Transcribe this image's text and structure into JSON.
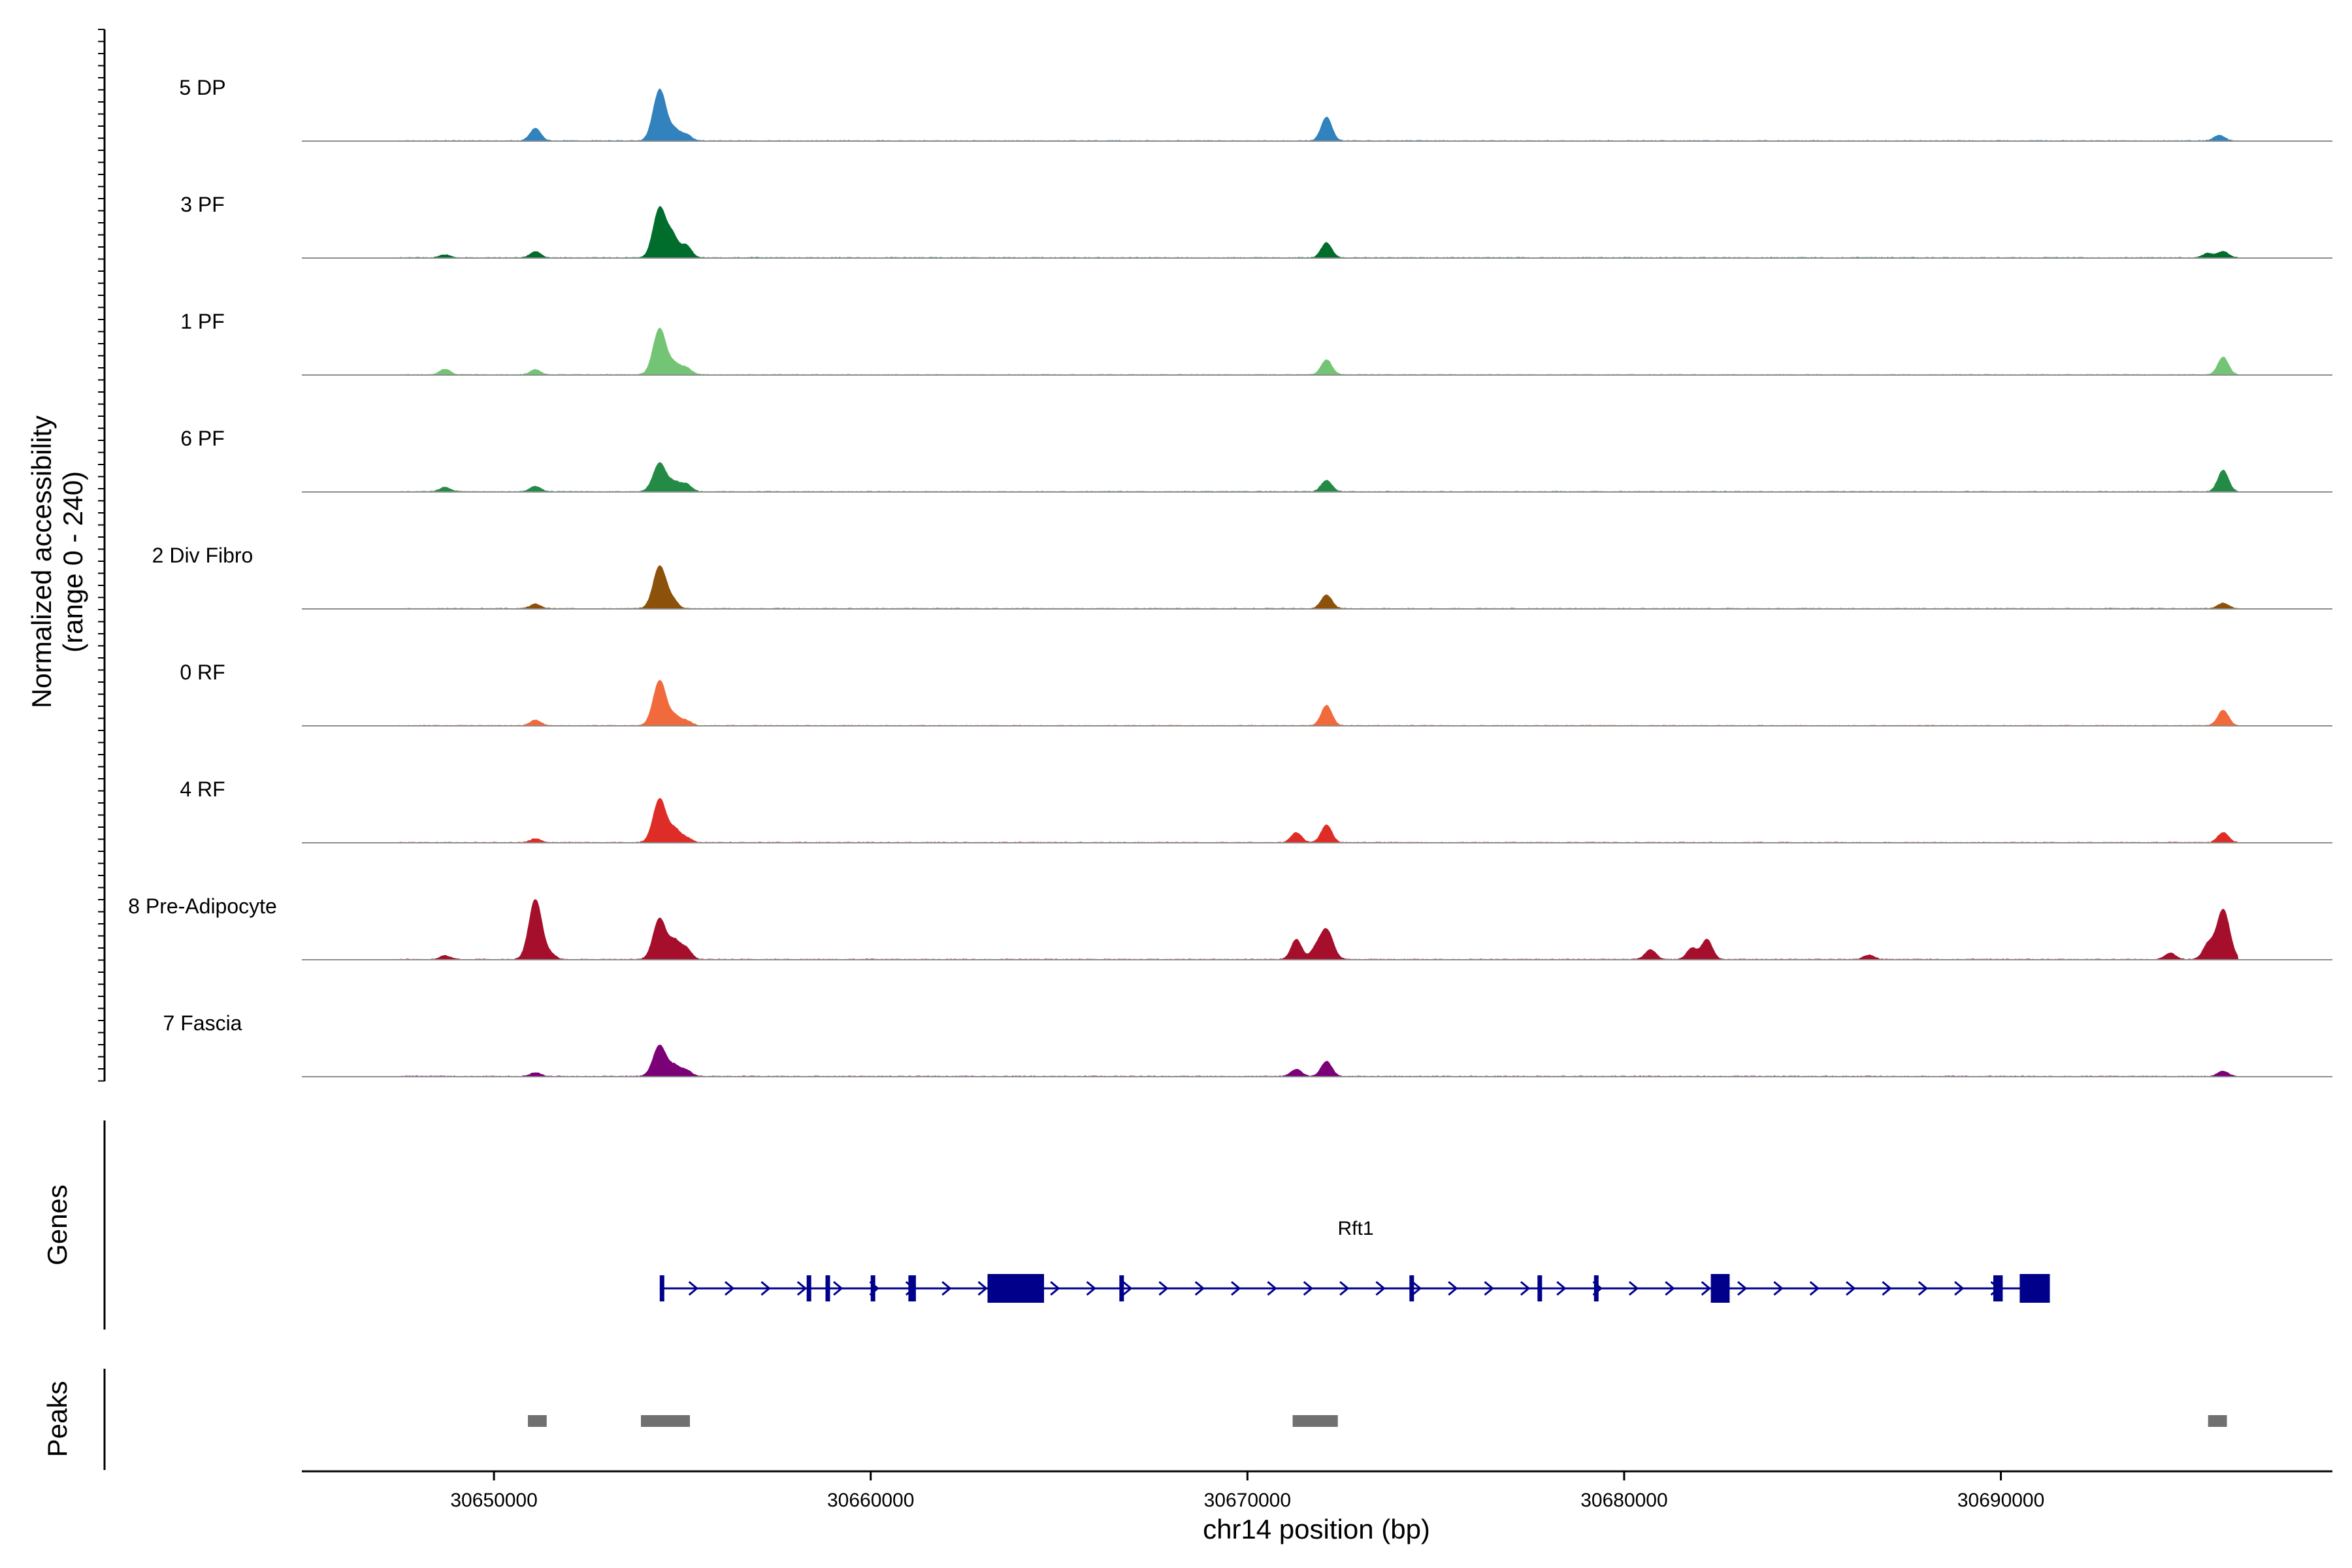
{
  "chart_data": {
    "type": "area",
    "title": "",
    "ylabel_line1": "Normalized accessibility",
    "ylabel_line2": "(range 0 - 240)",
    "xlabel": "chr14 position (bp)",
    "xlim": [
      30644900,
      30698800
    ],
    "ylim": [
      0,
      240
    ],
    "x_ticks": [
      30650000,
      30660000,
      30670000,
      30680000,
      30690000
    ],
    "x_tick_labels": [
      "30650000",
      "30660000",
      "30670000",
      "30680000",
      "30690000"
    ],
    "genes_label": "Genes",
    "peaks_label": "Peaks",
    "tracks": [
      {
        "name": "5 DP",
        "color": "#3182bd",
        "peaks": [
          [
            30651100,
            50
          ],
          [
            30654400,
            205
          ],
          [
            30654800,
            40
          ],
          [
            30655100,
            25
          ],
          [
            30672100,
            95
          ],
          [
            30695800,
            22
          ]
        ]
      },
      {
        "name": "3 PF",
        "color": "#006d2c",
        "peaks": [
          [
            30648700,
            12
          ],
          [
            30651100,
            25
          ],
          [
            30654400,
            200
          ],
          [
            30654750,
            80
          ],
          [
            30655100,
            50
          ],
          [
            30672100,
            60
          ],
          [
            30695500,
            18
          ],
          [
            30695900,
            25
          ]
        ]
      },
      {
        "name": "1 PF",
        "color": "#74c476",
        "peaks": [
          [
            30648700,
            22
          ],
          [
            30651100,
            20
          ],
          [
            30654400,
            185
          ],
          [
            30654800,
            40
          ],
          [
            30655100,
            28
          ],
          [
            30672100,
            60
          ],
          [
            30695900,
            70
          ]
        ]
      },
      {
        "name": "6 PF",
        "color": "#238b45",
        "peaks": [
          [
            30648700,
            18
          ],
          [
            30651100,
            22
          ],
          [
            30654400,
            115
          ],
          [
            30654800,
            35
          ],
          [
            30655100,
            30
          ],
          [
            30672100,
            45
          ],
          [
            30695900,
            85
          ]
        ]
      },
      {
        "name": "2 Div Fibro",
        "color": "#8c510a",
        "peaks": [
          [
            30651100,
            18
          ],
          [
            30654400,
            170
          ],
          [
            30654750,
            30
          ],
          [
            30672100,
            55
          ],
          [
            30695900,
            22
          ]
        ]
      },
      {
        "name": "0 RF",
        "color": "#f16a3b",
        "peaks": [
          [
            30651100,
            22
          ],
          [
            30654400,
            180
          ],
          [
            30654800,
            35
          ],
          [
            30655100,
            20
          ],
          [
            30672100,
            80
          ],
          [
            30695900,
            62
          ]
        ]
      },
      {
        "name": "4 RF",
        "color": "#de2d26",
        "peaks": [
          [
            30651100,
            15
          ],
          [
            30654400,
            175
          ],
          [
            30654800,
            50
          ],
          [
            30655100,
            20
          ],
          [
            30671300,
            40
          ],
          [
            30672100,
            70
          ],
          [
            30695900,
            40
          ]
        ]
      },
      {
        "name": "8 Pre-Adipocyte",
        "color": "#a50f2c",
        "peaks": [
          [
            30648700,
            15
          ],
          [
            30651100,
            240
          ],
          [
            30651500,
            20
          ],
          [
            30654400,
            165
          ],
          [
            30654800,
            70
          ],
          [
            30655100,
            45
          ],
          [
            30671300,
            80
          ],
          [
            30671800,
            35
          ],
          [
            30672100,
            120
          ],
          [
            30680700,
            40
          ],
          [
            30681800,
            45
          ],
          [
            30682200,
            80
          ],
          [
            30686500,
            18
          ],
          [
            30694500,
            25
          ],
          [
            30695500,
            60
          ],
          [
            30695900,
            200
          ]
        ]
      },
      {
        "name": "7 Fascia",
        "color": "#7a0177",
        "peaks": [
          [
            30651100,
            15
          ],
          [
            30654400,
            125
          ],
          [
            30654800,
            40
          ],
          [
            30655100,
            25
          ],
          [
            30671300,
            28
          ],
          [
            30672100,
            60
          ],
          [
            30695900,
            20
          ]
        ]
      }
    ],
    "gene": {
      "name": "Rft1",
      "color": "#00008b",
      "start": 30654400,
      "end": 30691300,
      "exons": [
        [
          30654400,
          30654520
        ],
        [
          30658300,
          30658420
        ],
        [
          30658800,
          30658920
        ],
        [
          30660000,
          30660120
        ],
        [
          30661000,
          30661200
        ],
        [
          30663100,
          30664600
        ],
        [
          30666600,
          30666720
        ],
        [
          30674300,
          30674420
        ],
        [
          30677700,
          30677820
        ],
        [
          30679200,
          30679320
        ],
        [
          30682300,
          30682800
        ],
        [
          30689800,
          30690050
        ],
        [
          30690500,
          30691300
        ]
      ]
    },
    "peak_regions": [
      [
        30650900,
        30651400
      ],
      [
        30653900,
        30655200
      ],
      [
        30671200,
        30672400
      ],
      [
        30695500,
        30696000
      ]
    ],
    "peak_color": "#707070"
  }
}
